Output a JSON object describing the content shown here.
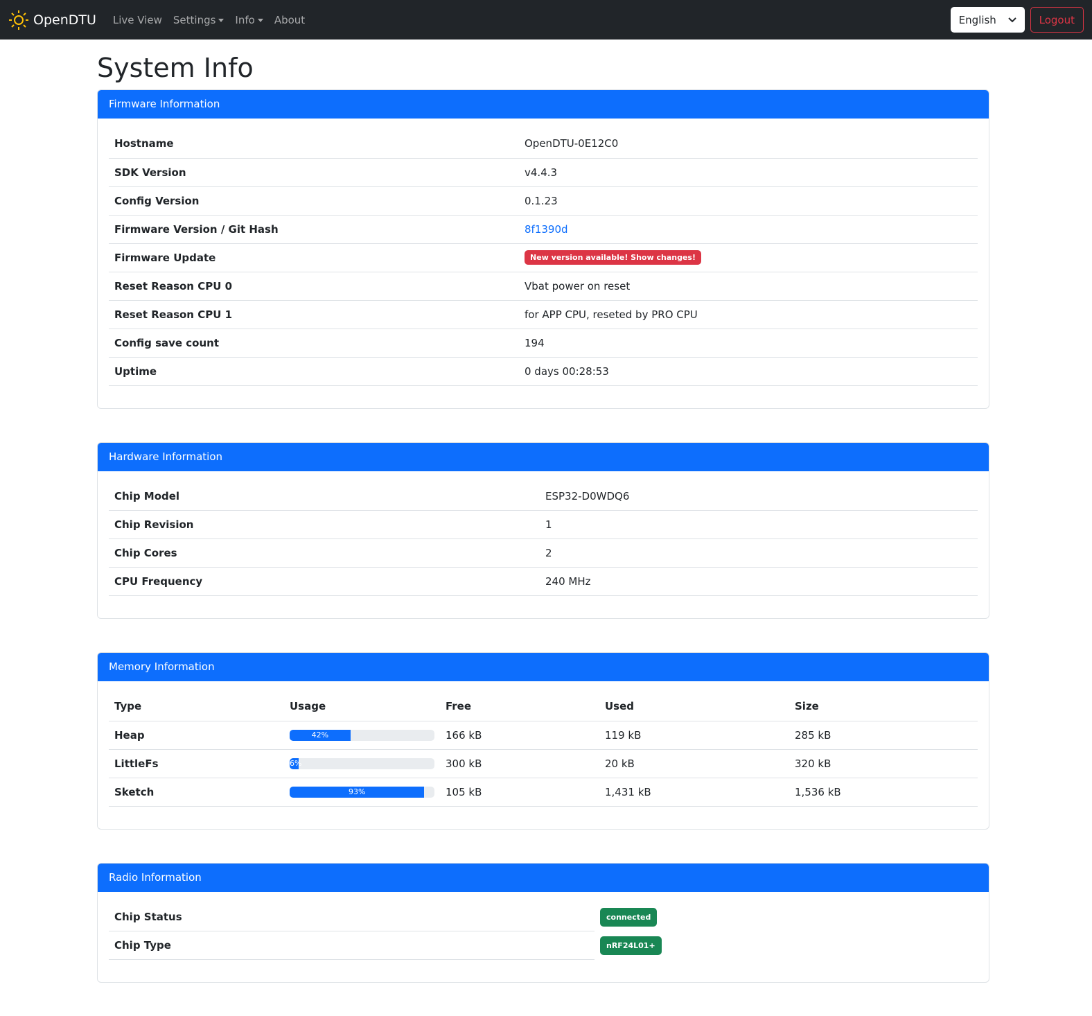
{
  "nav": {
    "brand": "OpenDTU",
    "items": [
      "Live View",
      "Settings",
      "Info",
      "About"
    ],
    "language": "English",
    "logout": "Logout"
  },
  "page_title": "System Info",
  "firmware": {
    "title": "Firmware Information",
    "rows": [
      {
        "label": "Hostname",
        "value": "OpenDTU-0E12C0"
      },
      {
        "label": "SDK Version",
        "value": "v4.4.3"
      },
      {
        "label": "Config Version",
        "value": "0.1.23"
      },
      {
        "label": "Firmware Version / Git Hash",
        "value": "8f1390d"
      },
      {
        "label": "Firmware Update",
        "value": "New version available! Show changes!"
      },
      {
        "label": "Reset Reason CPU 0",
        "value": "Vbat power on reset"
      },
      {
        "label": "Reset Reason CPU 1",
        "value": "for APP CPU, reseted by PRO CPU"
      },
      {
        "label": "Config save count",
        "value": "194"
      },
      {
        "label": "Uptime",
        "value": "0 days 00:28:53"
      }
    ]
  },
  "hardware": {
    "title": "Hardware Information",
    "rows": [
      {
        "label": "Chip Model",
        "value": "ESP32-D0WDQ6"
      },
      {
        "label": "Chip Revision",
        "value": "1"
      },
      {
        "label": "Chip Cores",
        "value": "2"
      },
      {
        "label": "CPU Frequency",
        "value": "240 MHz"
      }
    ]
  },
  "memory": {
    "title": "Memory Information",
    "headers": [
      "Type",
      "Usage",
      "Free",
      "Used",
      "Size"
    ],
    "rows": [
      {
        "type": "Heap",
        "usage": 42,
        "usage_label": "42%",
        "free": "166 kB",
        "used": "119 kB",
        "size": "285 kB"
      },
      {
        "type": "LittleFs",
        "usage": 6,
        "usage_label": "6%",
        "free": "300 kB",
        "used": "20 kB",
        "size": "320 kB"
      },
      {
        "type": "Sketch",
        "usage": 93,
        "usage_label": "93%",
        "free": "105 kB",
        "used": "1,431 kB",
        "size": "1,536 kB"
      }
    ]
  },
  "radio": {
    "title": "Radio Information",
    "rows": [
      {
        "label": "Chip Status",
        "value": "connected"
      },
      {
        "label": "Chip Type",
        "value": "nRF24L01+"
      }
    ]
  },
  "colors": {
    "primary": "#0d6efd",
    "danger": "#dc3545",
    "success": "#198754",
    "navbar": "#212529"
  }
}
